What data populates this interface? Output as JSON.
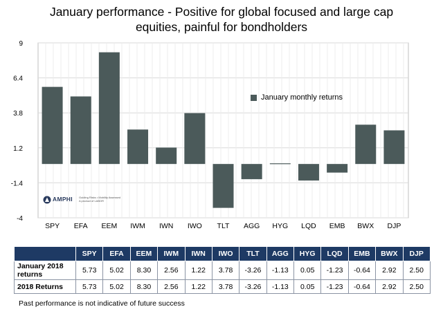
{
  "title_line1": "January performance - Positive for global focused and large cap",
  "title_line2": "equities, painful for bondholders",
  "legend_label": "January monthly returns",
  "colors": {
    "bar": "#4b5a5a",
    "table_header": "#1e3a64",
    "grid": "#d9d9d9"
  },
  "logo": {
    "name": "AMPHI",
    "tagline1": "Guiding Risks • Mobility Assessed",
    "tagline2": "A product of LABOR"
  },
  "chart_data": {
    "type": "bar",
    "categories": [
      "SPY",
      "EFA",
      "EEM",
      "IWM",
      "IWN",
      "IWO",
      "TLT",
      "AGG",
      "HYG",
      "LQD",
      "EMB",
      "BWX",
      "DJP"
    ],
    "series": [
      {
        "name": "January monthly returns",
        "values": [
          5.73,
          5.02,
          8.3,
          2.56,
          1.22,
          3.78,
          -3.26,
          -1.13,
          0.05,
          -1.23,
          -0.64,
          2.92,
          2.5
        ]
      }
    ],
    "ylim": [
      -4,
      9
    ],
    "yticks": [
      "9",
      "6.4",
      "3.8",
      "1.2",
      "-1.4",
      "-4"
    ],
    "ytick_values": [
      9,
      6.4,
      3.8,
      1.2,
      -1.4,
      -4
    ],
    "grid": true,
    "legend": "right"
  },
  "table": {
    "headers": [
      "SPY",
      "EFA",
      "EEM",
      "IWM",
      "IWN",
      "IWO",
      "TLT",
      "AGG",
      "HYG",
      "LQD",
      "EMB",
      "BWX",
      "DJP"
    ],
    "rows": [
      {
        "label_line1": "January 2018",
        "label_line2": "returns",
        "values": [
          "5.73",
          "5.02",
          "8.30",
          "2.56",
          "1.22",
          "3.78",
          "-3.26",
          "-1.13",
          "0.05",
          "-1.23",
          "-0.64",
          "2.92",
          "2.50"
        ]
      },
      {
        "label_line1": "2018 Returns",
        "label_line2": "",
        "values": [
          "5.73",
          "5.02",
          "8.30",
          "2.56",
          "1.22",
          "3.78",
          "-3.26",
          "-1.13",
          "0.05",
          "-1.23",
          "-0.64",
          "2.92",
          "2.50"
        ]
      }
    ]
  },
  "footnote": "Past performance is not indicative of future success"
}
